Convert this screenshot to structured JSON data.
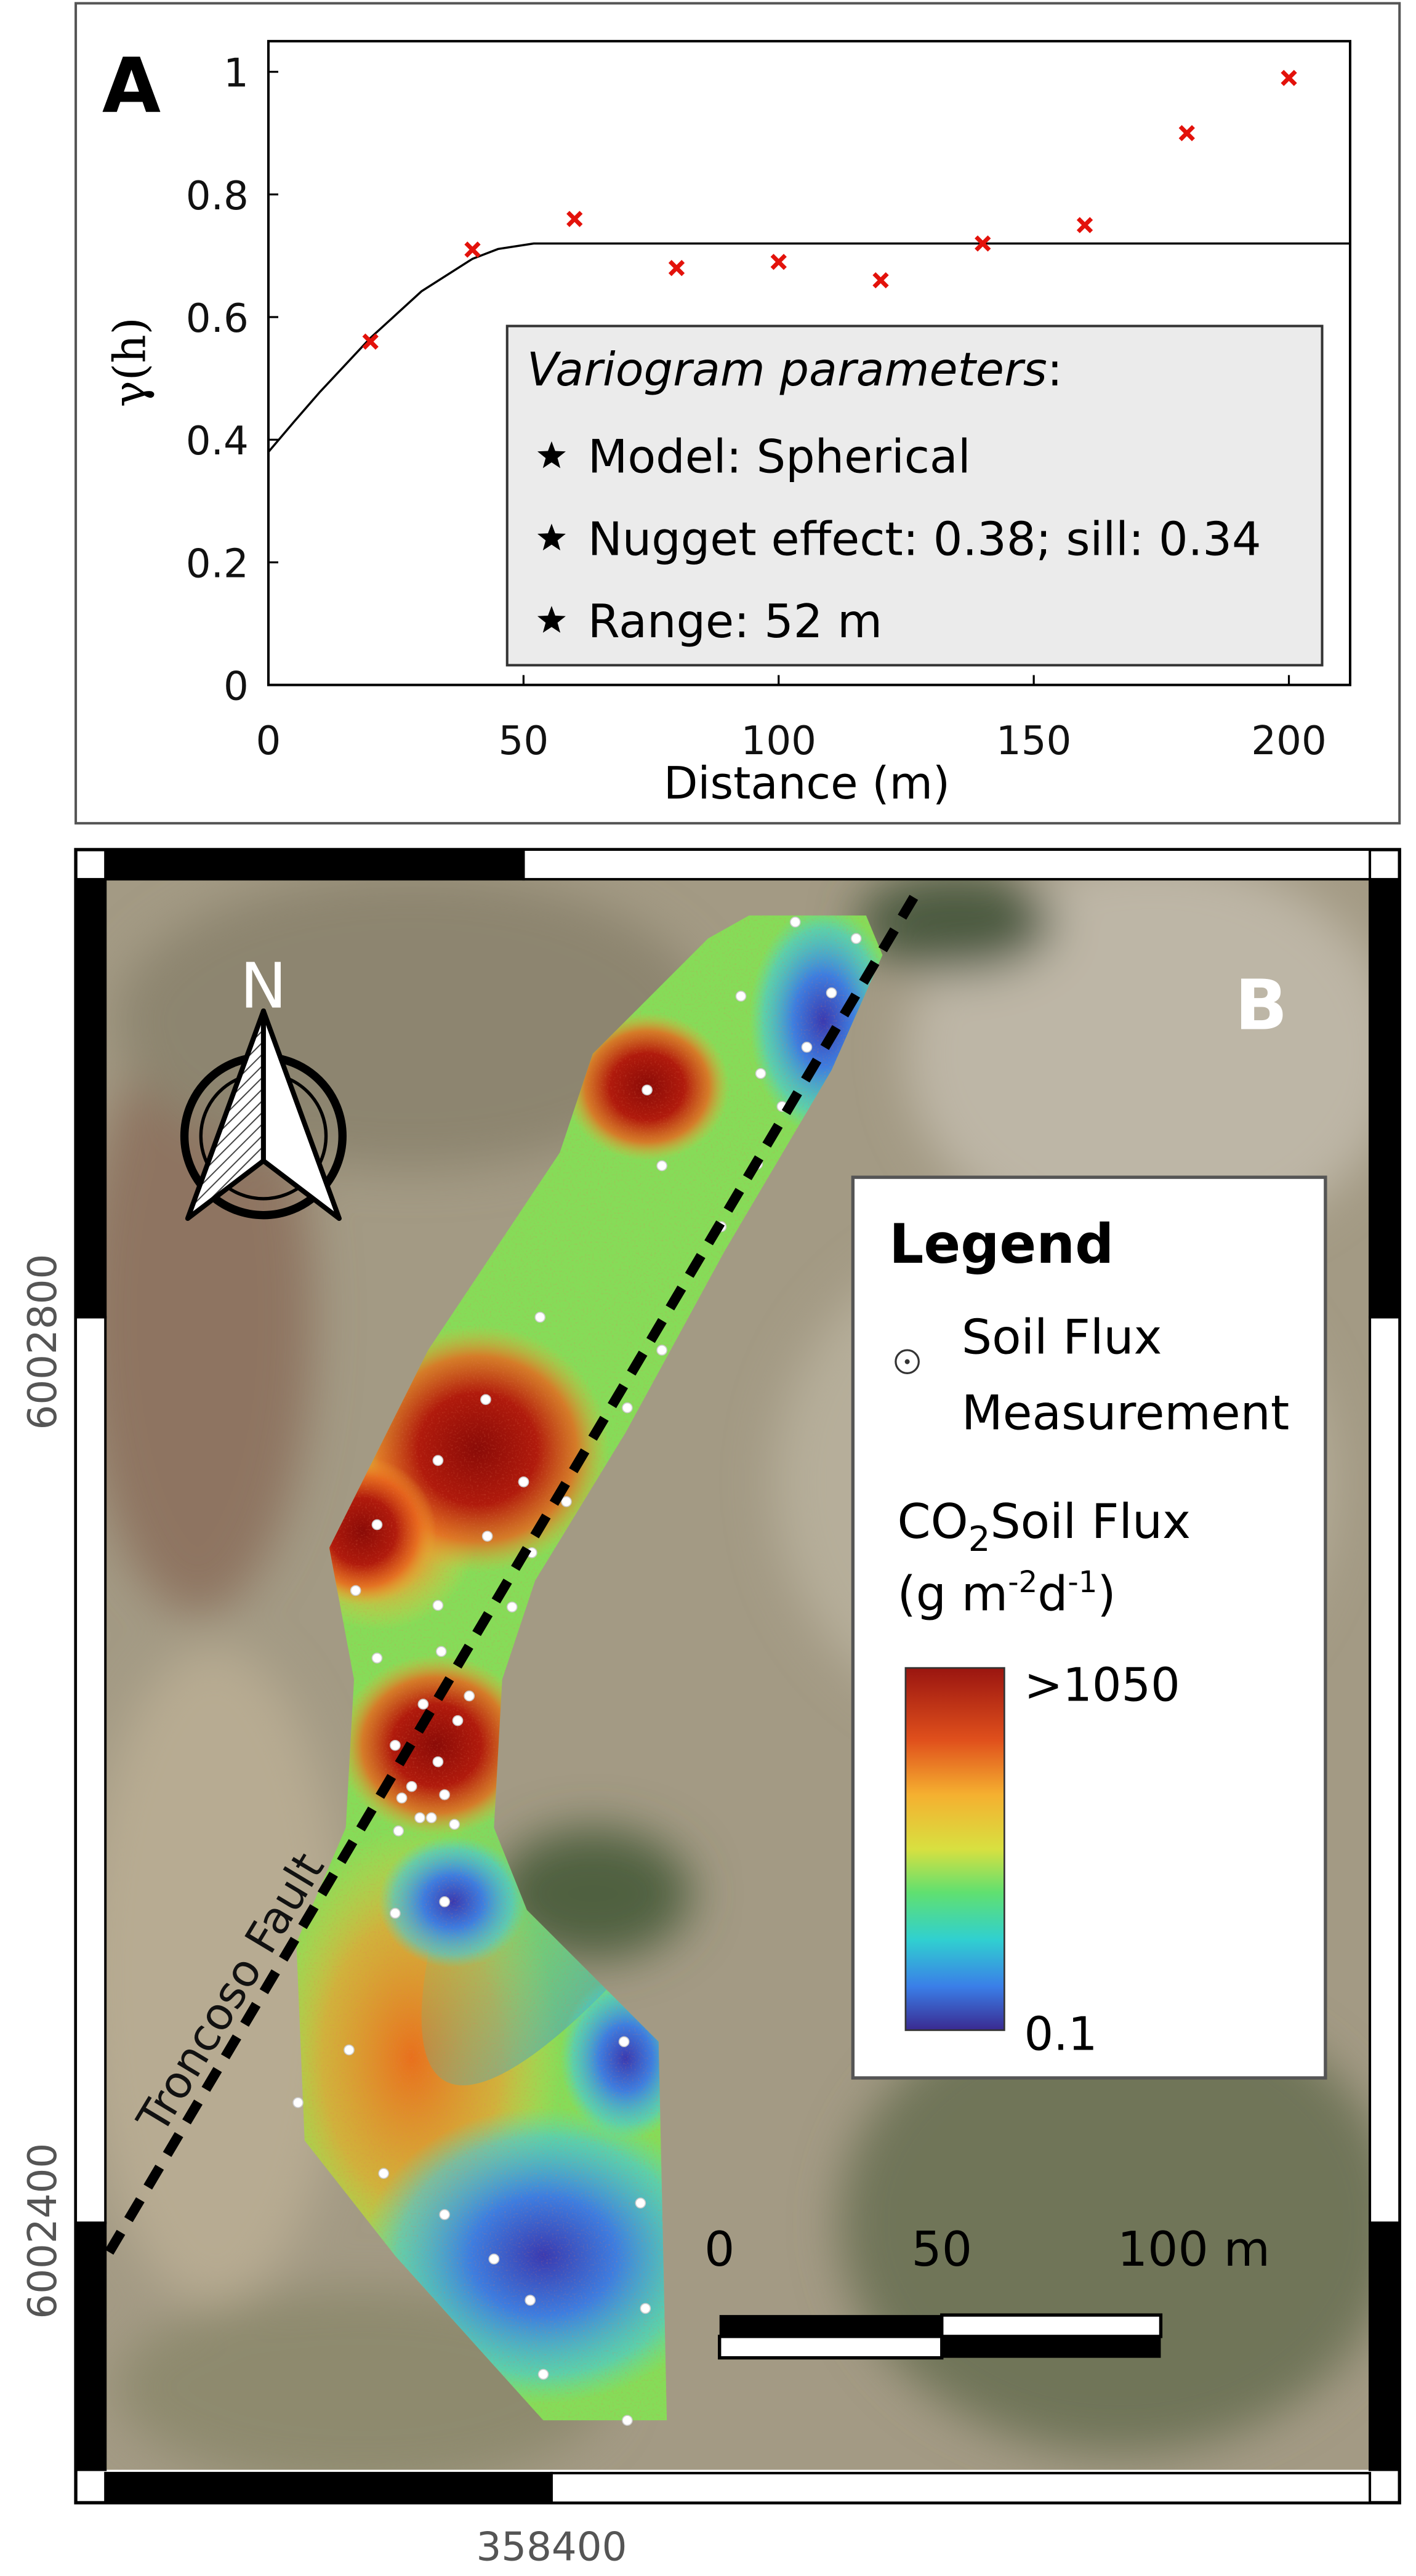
{
  "chart_data": {
    "type": "scatter",
    "panel_label": "A",
    "x_label": "Distance (m)",
    "y_label": "γ(h)",
    "xlim": [
      0,
      212
    ],
    "ylim": [
      0,
      1.05
    ],
    "xticks": [
      0,
      50,
      100,
      150,
      200
    ],
    "yticks": [
      0,
      0.2,
      0.4,
      0.6,
      0.8,
      1
    ],
    "x": [
      20,
      40,
      60,
      80,
      100,
      120,
      140,
      160,
      180,
      200
    ],
    "values": [
      0.56,
      0.71,
      0.76,
      0.68,
      0.69,
      0.66,
      0.72,
      0.75,
      0.9,
      0.99
    ],
    "color": "#e3120b",
    "model": {
      "x": [
        0,
        5,
        10,
        20,
        30,
        40,
        45,
        52,
        212
      ],
      "values": [
        0.38,
        0.429,
        0.477,
        0.566,
        0.642,
        0.695,
        0.711,
        0.72,
        0.72
      ],
      "color": "#000000"
    },
    "annotation": {
      "title": "Variogram parameters",
      "title_suffix": ":",
      "items": [
        "Model: Spherical",
        "Nugget effect: 0.38; sill: 0.34",
        "Range: 52 m"
      ]
    }
  },
  "map": {
    "panel_label": "B",
    "north_label": "N",
    "fault_label": "Troncoso Fault",
    "legend": {
      "title": "Legend",
      "point_label": [
        "Soil Flux",
        "Measurement"
      ],
      "colorbar_title": [
        "CO",
        "2",
        "Soil Flux"
      ],
      "colorbar_units": [
        "(g m",
        "-2",
        "d",
        "-1",
        ")"
      ],
      "colorbar_max": ">1050",
      "colorbar_min": "0.1"
    },
    "scale_bar": [
      "0",
      "50",
      "100 m"
    ],
    "northing_labels": [
      "6002800",
      "6002400"
    ],
    "easting_labels": [
      "358400"
    ]
  }
}
